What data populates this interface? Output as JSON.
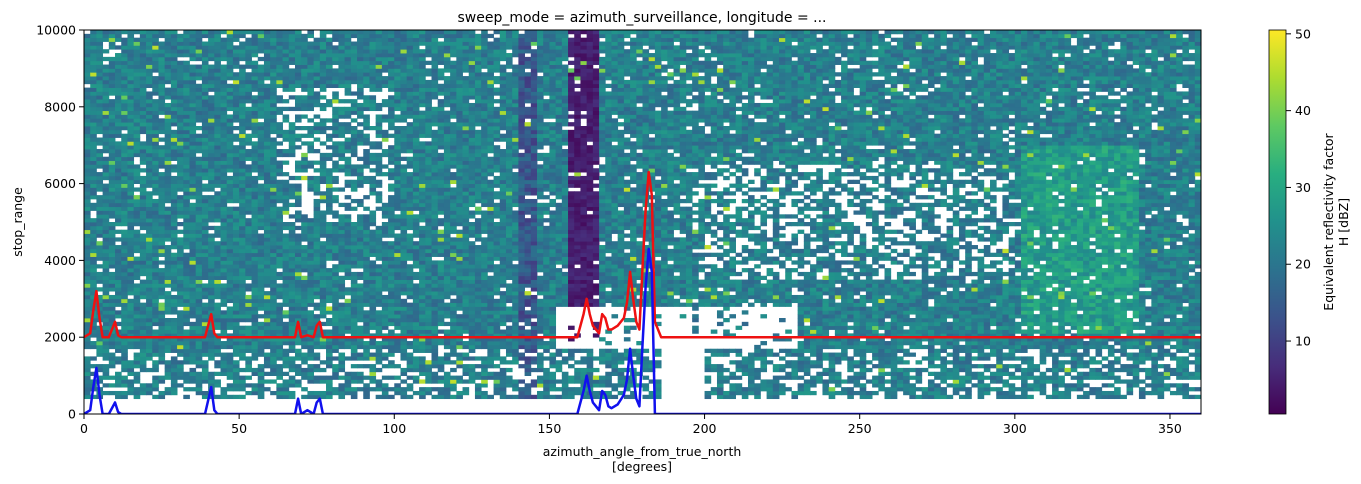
{
  "chart_data": {
    "type": "heatmap",
    "title": "sweep_mode = azimuth_surveillance, longitude = ...",
    "xlabel_line1": "azimuth_angle_from_true_north",
    "xlabel_line2": "[degrees]",
    "ylabel": "stop_range",
    "xlim": [
      0,
      360
    ],
    "ylim": [
      0,
      10000
    ],
    "x_ticks": [
      0,
      50,
      100,
      150,
      200,
      250,
      300,
      350
    ],
    "y_ticks": [
      0,
      2000,
      4000,
      6000,
      8000,
      10000
    ],
    "colorbar": {
      "label_line1": "Equivalent reflectivity factor",
      "label_line2": "H [dBZ]",
      "range": [
        0.5,
        50.5
      ],
      "ticks": [
        10,
        20,
        30,
        40,
        50
      ],
      "colormap": "viridis"
    },
    "series": [
      {
        "color": "#ee1111",
        "x": [
          0,
          2,
          3,
          4,
          5,
          6,
          8,
          10,
          11,
          12,
          39,
          41,
          42,
          43,
          68,
          69,
          70,
          72,
          74,
          75,
          76,
          77,
          78,
          159,
          160,
          161,
          162,
          163,
          164,
          165,
          166,
          167,
          168,
          169,
          170,
          172,
          174,
          175,
          176,
          177,
          178,
          179,
          180,
          181,
          182,
          183,
          184,
          186,
          360
        ],
        "y": [
          2000,
          2100,
          2700,
          3200,
          2500,
          2000,
          2000,
          2400,
          2050,
          2000,
          2000,
          2600,
          2100,
          2000,
          2000,
          2400,
          2000,
          2050,
          2000,
          2300,
          2400,
          2000,
          2000,
          2000,
          2300,
          2600,
          3000,
          2600,
          2300,
          2200,
          2100,
          2600,
          2500,
          2200,
          2200,
          2300,
          2500,
          2900,
          3700,
          3000,
          2400,
          2200,
          3800,
          5300,
          6300,
          5700,
          2400,
          2000,
          2000
        ]
      },
      {
        "color": "#1111ee",
        "x": [
          0,
          2,
          3,
          4,
          5,
          6,
          8,
          10,
          11,
          12,
          39,
          41,
          42,
          43,
          68,
          69,
          70,
          72,
          74,
          75,
          76,
          77,
          78,
          159,
          160,
          161,
          162,
          163,
          164,
          165,
          166,
          167,
          168,
          169,
          170,
          172,
          174,
          175,
          176,
          177,
          178,
          179,
          180,
          181,
          182,
          183,
          184,
          186,
          360
        ],
        "y": [
          0,
          100,
          700,
          1200,
          500,
          0,
          0,
          300,
          50,
          0,
          0,
          700,
          100,
          0,
          0,
          400,
          0,
          100,
          0,
          300,
          400,
          0,
          0,
          0,
          300,
          600,
          1000,
          600,
          300,
          200,
          100,
          600,
          500,
          200,
          150,
          250,
          500,
          900,
          1700,
          1000,
          400,
          200,
          1800,
          3300,
          4300,
          3700,
          0,
          0,
          0
        ]
      }
    ]
  }
}
